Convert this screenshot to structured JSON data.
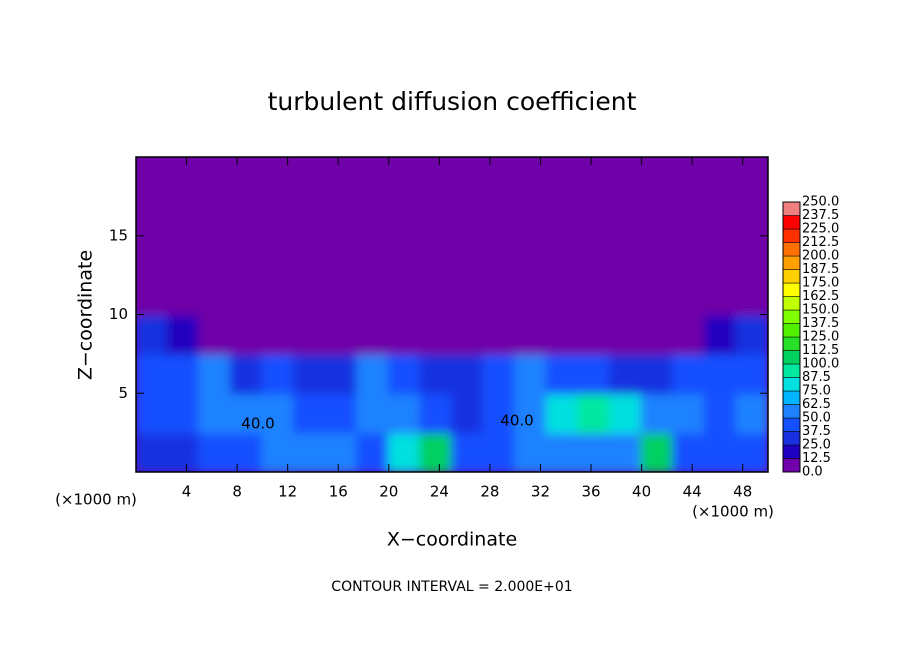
{
  "chart_data": {
    "type": "heatmap",
    "title": "turbulent diffusion coefficient",
    "x_label": "X−coordinate",
    "y_label": "Z−coordinate",
    "x_unit": "(×1000 m)",
    "x_unit_right": "(×1000 m)",
    "note": "CONTOUR INTERVAL = 2.000E+01",
    "contour_labels": [
      "40.0",
      "40.0"
    ],
    "xlim": [
      0,
      50
    ],
    "ylim": [
      0,
      20
    ],
    "xticks": [
      4,
      8,
      12,
      16,
      20,
      24,
      28,
      32,
      36,
      40,
      44,
      48
    ],
    "yticks": [
      5,
      10,
      15
    ],
    "x": [
      1.25,
      3.75,
      6.25,
      8.75,
      11.25,
      13.75,
      16.25,
      18.75,
      21.25,
      23.75,
      26.25,
      28.75,
      31.25,
      33.75,
      36.25,
      38.75,
      41.25,
      43.75,
      46.25,
      48.75
    ],
    "y": [
      1.25,
      3.75,
      6.25,
      8.75,
      11.25,
      13.75,
      16.25,
      18.75
    ],
    "values": [
      [
        35,
        30,
        40,
        45,
        55,
        60,
        50,
        45,
        75,
        100,
        45,
        40,
        50,
        55,
        50,
        60,
        110,
        45,
        40,
        45
      ],
      [
        40,
        45,
        55,
        60,
        50,
        45,
        40,
        55,
        50,
        45,
        35,
        45,
        55,
        75,
        90,
        80,
        60,
        50,
        45,
        55
      ],
      [
        45,
        40,
        50,
        35,
        40,
        35,
        30,
        50,
        45,
        35,
        30,
        40,
        50,
        45,
        40,
        30,
        35,
        40,
        45,
        40
      ],
      [
        25,
        15,
        5,
        0,
        0,
        0,
        0,
        0,
        0,
        0,
        0,
        0,
        0,
        0,
        0,
        0,
        0,
        0,
        15,
        25
      ],
      [
        0,
        0,
        0,
        0,
        0,
        0,
        0,
        0,
        0,
        0,
        0,
        0,
        0,
        0,
        0,
        0,
        0,
        0,
        0,
        0
      ],
      [
        0,
        0,
        0,
        0,
        0,
        0,
        0,
        0,
        0,
        0,
        0,
        0,
        0,
        0,
        0,
        0,
        0,
        0,
        0,
        0
      ],
      [
        0,
        0,
        0,
        0,
        0,
        0,
        0,
        0,
        0,
        0,
        0,
        0,
        0,
        0,
        0,
        0,
        0,
        0,
        0,
        0
      ],
      [
        0,
        0,
        0,
        0,
        0,
        0,
        0,
        0,
        0,
        0,
        0,
        0,
        0,
        0,
        0,
        0,
        0,
        0,
        0,
        0
      ]
    ],
    "levels": [
      {
        "value": 0,
        "label": "0.0"
      },
      12.5,
      {
        "value": 25,
        "label": "25.0"
      },
      37.5,
      {
        "value": 50,
        "label": "50.0"
      },
      62.5,
      {
        "value": 75,
        "label": "75.0"
      },
      87.5,
      {
        "value": 100,
        "label": "100.0"
      },
      112.5,
      {
        "value": 125,
        "label": "125.0"
      },
      137.5,
      {
        "value": 150,
        "label": "150.0"
      },
      162.5,
      {
        "value": 175,
        "label": "175.0"
      },
      187.5,
      {
        "value": 200,
        "label": "200.0"
      },
      212.5,
      {
        "value": 225,
        "label": "225.0"
      },
      237.5,
      {
        "value": 250,
        "label": "250.0"
      }
    ],
    "colors": [
      "#7000a8",
      "#2000c0",
      "#1830e0",
      "#1450ff",
      "#1e82ff",
      "#00b4ff",
      "#00e0e0",
      "#00e8a0",
      "#00d060",
      "#28e028",
      "#50f000",
      "#80ff00",
      "#c0ff00",
      "#ffff00",
      "#ffd000",
      "#ffa000",
      "#ff7000",
      "#ff3000",
      "#ff0000",
      "#f08080"
    ]
  }
}
